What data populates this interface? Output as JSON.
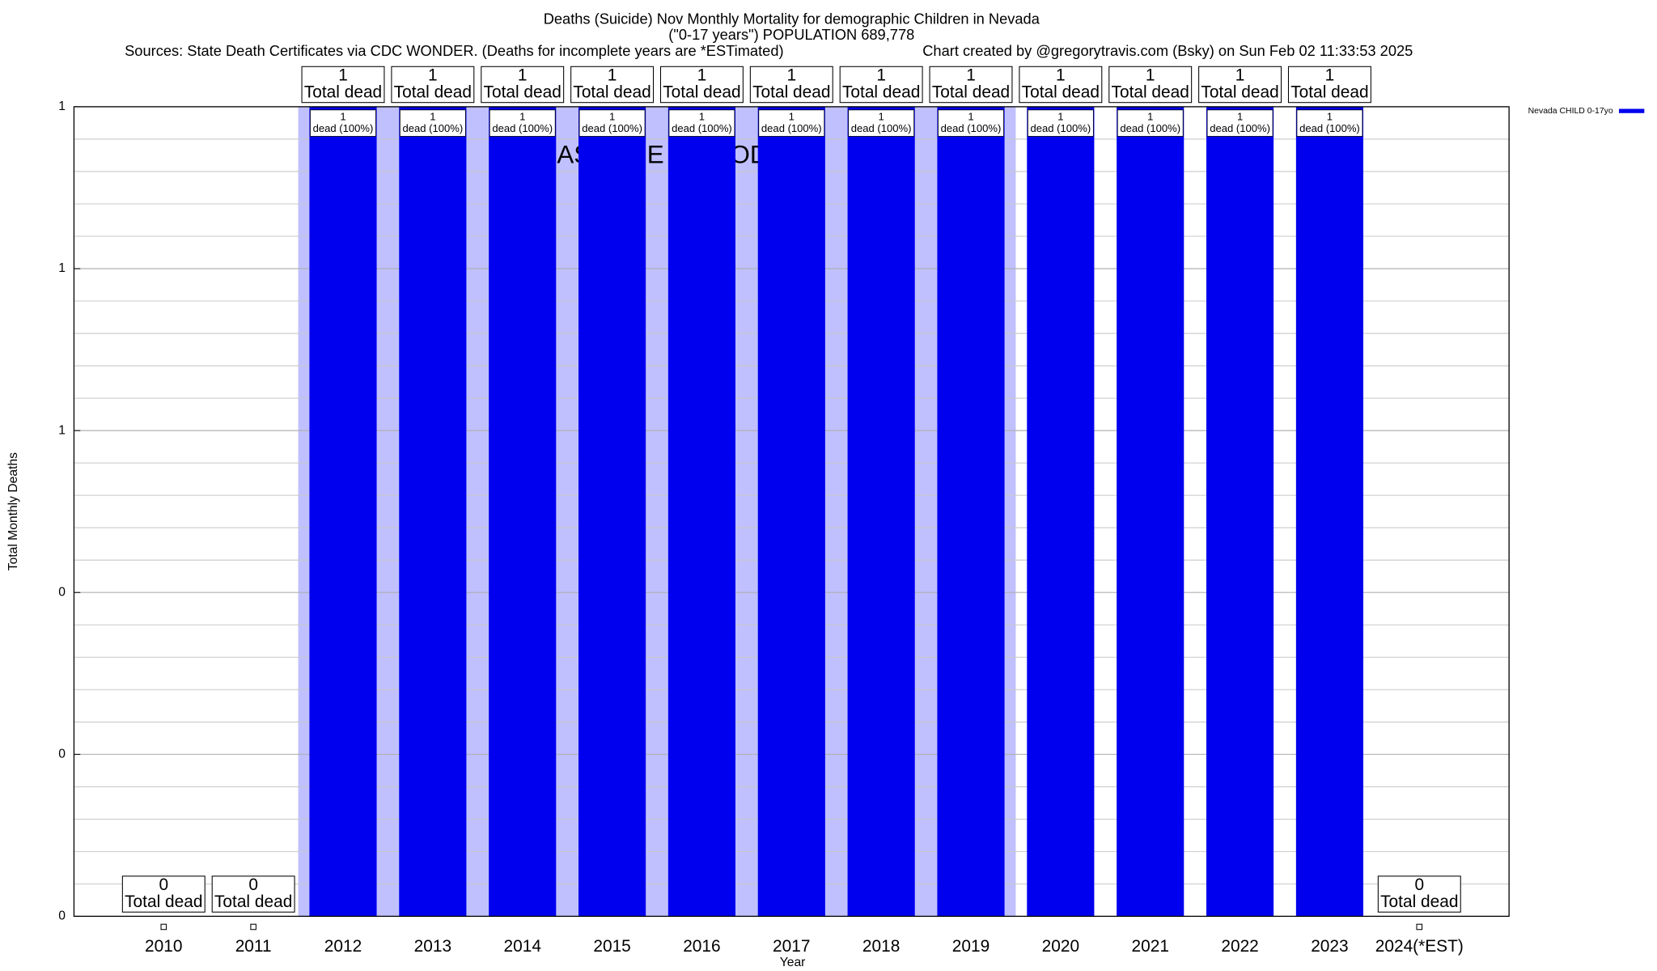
{
  "chart_data": {
    "type": "bar",
    "title": "Deaths (Suicide) Nov Monthly Mortality for demographic Children in Nevada",
    "subtitle": "(\"0-17 years\") POPULATION 689,778",
    "source": "Sources: State Death Certificates via CDC WONDER. (Deaths for incomplete years are *ESTimated)",
    "credit": "Chart created by @gregorytravis.com (Bsky) on Sun Feb 02 11:33:53 2025",
    "x_label": "Year",
    "y_label": "Total Monthly Deaths",
    "categories": [
      "2010",
      "2011",
      "2012",
      "2013",
      "2014",
      "2015",
      "2016",
      "2017",
      "2018",
      "2019",
      "2020",
      "2021",
      "2022",
      "2023",
      "2024(*EST)"
    ],
    "series": [
      {
        "name": "Nevada CHILD 0-17yo",
        "color": "#0000ee",
        "values": [
          0,
          0,
          1,
          1,
          1,
          1,
          1,
          1,
          1,
          1,
          1,
          1,
          1,
          1,
          0
        ]
      }
    ],
    "total_label": "Total dead",
    "inner_labels": [
      null,
      null,
      "dead (100%)",
      "dead (100%)",
      "dead (100%)",
      "dead (100%)",
      "dead (100%)",
      "dead (100%)",
      "dead (100%)",
      "dead (100%)",
      "dead (100%)",
      "dead (100%)",
      "dead (100%)",
      "dead (100%)",
      null
    ],
    "baseline": {
      "label": "BASELINE PERIOD",
      "start": "2012",
      "end": "2019",
      "color": "#c0c0ff"
    },
    "ylim": [
      0,
      1
    ],
    "yticks": [
      0,
      {
        "value": 0.2,
        "label": "0"
      },
      {
        "value": 0.4,
        "label": "0"
      },
      {
        "value": 0.6,
        "label": "1"
      },
      {
        "value": 0.8,
        "label": "1"
      },
      1
    ],
    "y_minor_ticks": [
      0.04,
      0.08,
      0.12,
      0.16,
      0.24,
      0.28,
      0.32,
      0.36,
      0.44,
      0.48,
      0.52,
      0.56,
      0.64,
      0.68,
      0.72,
      0.76,
      0.84,
      0.88,
      0.92,
      0.96
    ],
    "grid": true,
    "legend": "top-right"
  }
}
